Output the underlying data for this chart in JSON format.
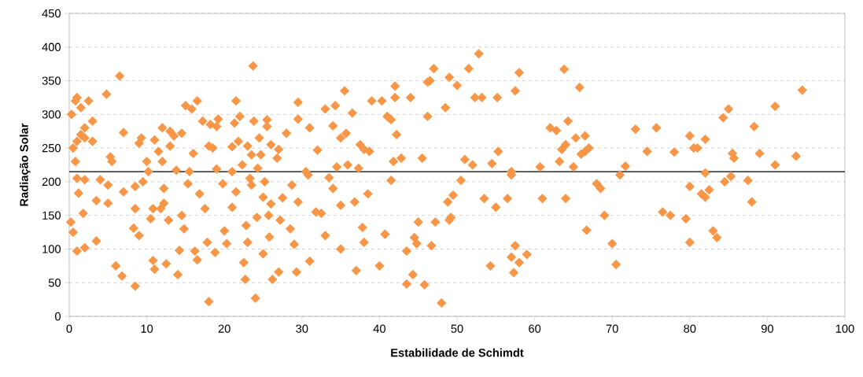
{
  "chart_data": {
    "type": "scatter",
    "xlabel": "Estabilidade de Schimdt",
    "ylabel": "Radiação Solar",
    "xlim": [
      0,
      100
    ],
    "xticks": [
      0,
      10,
      20,
      30,
      40,
      50,
      60,
      70,
      80,
      90,
      100
    ],
    "ylim": [
      0,
      450
    ],
    "yticks": [
      0,
      50,
      100,
      150,
      200,
      250,
      300,
      350,
      400,
      450
    ],
    "grid": "y",
    "marker": "diamond",
    "ref_lines": [
      {
        "axis": "y",
        "value": 215,
        "color": "#000000",
        "line_style": "solid"
      }
    ],
    "series": [
      {
        "color": "#f79646",
        "x": [
          0.2,
          0.5,
          0.3,
          0.8,
          1,
          1.5,
          0.5,
          1,
          2,
          2.5,
          3,
          2,
          1.5,
          3,
          0.8,
          1,
          1.2,
          1,
          2,
          1.8,
          2,
          3.5,
          3.5,
          4,
          4.8,
          5,
          5.3,
          5.5,
          5,
          6,
          6.5,
          6.8,
          7,
          7,
          8.5,
          8.3,
          8.5,
          8.5,
          9,
          9,
          9.3,
          9.5,
          10,
          10.2,
          10.5,
          10.8,
          10.8,
          11,
          11,
          11.5,
          11.8,
          12,
          12,
          12.2,
          12.2,
          12.5,
          12.8,
          13,
          13,
          13.5,
          13.8,
          14,
          14.2,
          14.5,
          14.5,
          14.8,
          15,
          15.3,
          15.5,
          15.8,
          16,
          16.2,
          16.5,
          16.5,
          16.8,
          17.2,
          17.5,
          17.8,
          18,
          18.2,
          18,
          18.5,
          18.8,
          19,
          19,
          19.2,
          19.8,
          20,
          20.3,
          21,
          21,
          21,
          21.3,
          21.5,
          21.5,
          21.8,
          22,
          22.3,
          22.5,
          22.7,
          22.8,
          23,
          23,
          23.3,
          23.5,
          23.5,
          23.7,
          23.8,
          24,
          24.2,
          24.3,
          24.5,
          24.7,
          25,
          25,
          25.2,
          25.5,
          25.5,
          25.7,
          25.8,
          26,
          26,
          26.2,
          26.8,
          27,
          27,
          27.2,
          27.5,
          28,
          28.5,
          28.7,
          29,
          29.3,
          29.5,
          29.5,
          29.5,
          30.5,
          30.8,
          31,
          31,
          31.8,
          32,
          32.5,
          33,
          33,
          33.5,
          34,
          34,
          34.3,
          34.5,
          35,
          35,
          35,
          35.5,
          35.7,
          35.9,
          36.5,
          36.8,
          37,
          37.3,
          37.5,
          37.8,
          38,
          38,
          38.5,
          38.7,
          39,
          40,
          40.3,
          40.7,
          41,
          41.5,
          41.8,
          41.5,
          42,
          42,
          42.2,
          42.8,
          43.5,
          43.5,
          44,
          44.3,
          44.5,
          44.8,
          45,
          45.5,
          45.8,
          46.2,
          46.2,
          46.5,
          46.7,
          47,
          47.2,
          48,
          48.5,
          48.8,
          49,
          49,
          49.2,
          49.5,
          50,
          50.5,
          51,
          51.5,
          52,
          52.3,
          52.8,
          53.2,
          53.5,
          54.3,
          54.5,
          55,
          55.2,
          55.3,
          56.5,
          57,
          57,
          57,
          57.3,
          57.5,
          57.5,
          58,
          58,
          59,
          60.7,
          61,
          62,
          62.8,
          63.2,
          63.5,
          63.8,
          64,
          64,
          64.3,
          65,
          65.3,
          65.8,
          66,
          66.5,
          66.5,
          66.7,
          67,
          68,
          68.5,
          69,
          70,
          70.5,
          71,
          71.7,
          73,
          74.5,
          75.7,
          76.5,
          77.5,
          78,
          79.5,
          80,
          80,
          80,
          80.5,
          81,
          81.5,
          82,
          82,
          82,
          82.5,
          83,
          83.5,
          84.3,
          84.5,
          85,
          85.3,
          85.5,
          85.7,
          87.5,
          88,
          88.3,
          89,
          91,
          91,
          93.7,
          94.5
        ],
        "values": [
          140,
          125,
          300,
          320,
          325,
          310,
          250,
          260,
          265,
          320,
          290,
          280,
          270,
          260,
          230,
          205,
          183,
          97,
          102,
          153,
          203,
          112,
          172,
          203,
          330,
          195,
          237,
          230,
          168,
          75,
          357,
          60,
          185,
          273,
          45,
          131,
          160,
          193,
          120,
          257,
          265,
          200,
          230,
          215,
          145,
          160,
          83,
          70,
          262,
          245,
          160,
          280,
          230,
          190,
          168,
          78,
          143,
          275,
          253,
          268,
          217,
          62,
          98,
          150,
          272,
          130,
          313,
          197,
          215,
          308,
          242,
          97,
          320,
          84,
          182,
          290,
          160,
          110,
          253,
          285,
          22,
          250,
          95,
          219,
          282,
          293,
          197,
          127,
          108,
          162,
          215,
          252,
          287,
          320,
          185,
          260,
          297,
          225,
          80,
          55,
          135,
          110,
          253,
          205,
          195,
          240,
          372,
          290,
          27,
          147,
          220,
          265,
          240,
          93,
          177,
          200,
          292,
          282,
          150,
          118,
          167,
          255,
          55,
          235,
          66,
          248,
          143,
          176,
          272,
          130,
          195,
          107,
          66,
          318,
          293,
          170,
          215,
          210,
          82,
          280,
          155,
          247,
          153,
          120,
          308,
          206,
          190,
          283,
          313,
          222,
          165,
          100,
          265,
          335,
          272,
          225,
          302,
          170,
          68,
          220,
          255,
          132,
          110,
          248,
          182,
          245,
          320,
          75,
          320,
          122,
          297,
          202,
          230,
          292,
          342,
          325,
          270,
          235,
          48,
          97,
          325,
          62,
          117,
          108,
          140,
          235,
          47,
          348,
          297,
          350,
          105,
          368,
          140,
          20,
          310,
          170,
          143,
          355,
          147,
          180,
          343,
          202,
          233,
          368,
          225,
          325,
          390,
          325,
          175,
          75,
          227,
          162,
          325,
          245,
          175,
          215,
          210,
          88,
          65,
          105,
          335,
          80,
          362,
          92,
          222,
          175,
          280,
          276,
          230,
          248,
          367,
          175,
          255,
          290,
          222,
          265,
          340,
          241,
          268,
          245,
          128,
          250,
          197,
          190,
          150,
          108,
          77,
          210,
          223,
          278,
          245,
          280,
          155,
          150,
          244,
          145,
          268,
          193,
          110,
          250,
          250,
          182,
          213,
          177,
          263,
          188,
          127,
          117,
          295,
          200,
          308,
          208,
          242,
          235,
          202,
          170,
          282,
          242,
          225,
          312,
          238,
          336
        ]
      }
    ]
  }
}
